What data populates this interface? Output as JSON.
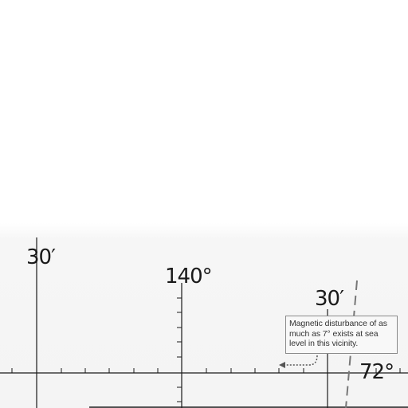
{
  "map": {
    "labels": {
      "minute_left": "30′",
      "longitude": "140°",
      "minute_right": "30′",
      "latitude": "72°"
    },
    "note": "Magnetic disturbance of as much as 7° exists at sea level in this vicinity.",
    "colors": {
      "grid_line": "#1a1a1a",
      "dashed_line": "#777777",
      "note_border": "#8a8a8a",
      "arrow": "#555555"
    }
  }
}
